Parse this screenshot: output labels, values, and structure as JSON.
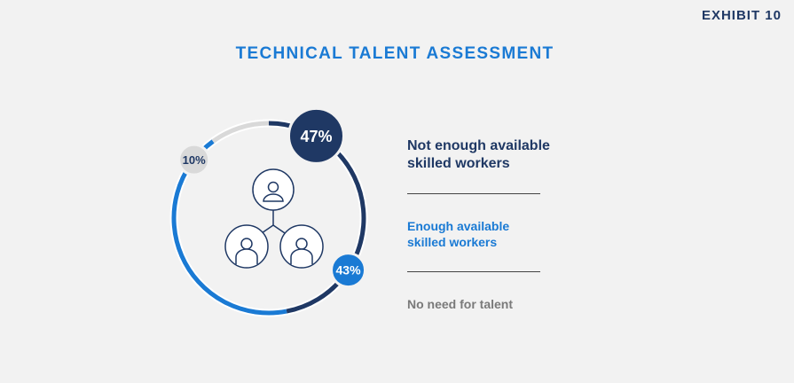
{
  "exhibit_label": "EXHIBIT 10",
  "chart_data": {
    "type": "pie",
    "style": "donut",
    "title": "TECHNICAL TALENT ASSESSMENT",
    "categories": [
      "Not enough available skilled workers",
      "Enough available skilled workers",
      "No need for talent"
    ],
    "values": [
      47,
      43,
      10
    ],
    "value_labels": [
      "47%",
      "43%",
      "10%"
    ],
    "colors": [
      "#1f3864",
      "#1a7ad4",
      "#d9d9d9"
    ],
    "legend_position": "right"
  },
  "center_icon": "people-network-icon",
  "legend": [
    {
      "line1": "Not enough available",
      "line2": "skilled workers"
    },
    {
      "line1": "Enough available",
      "line2": "skilled workers"
    },
    {
      "line1": "No need for talent",
      "line2": ""
    }
  ]
}
